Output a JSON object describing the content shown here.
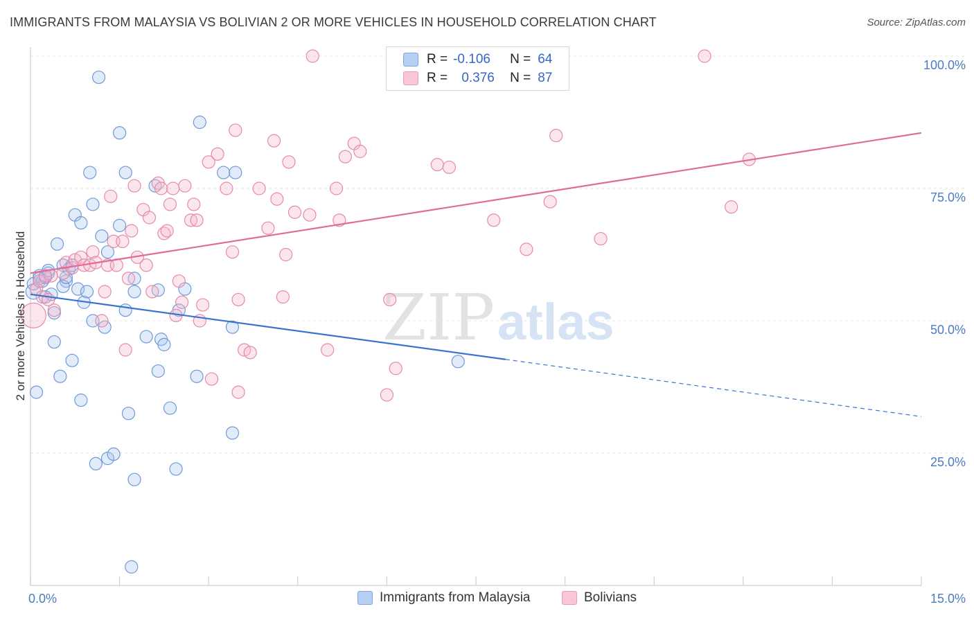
{
  "title": "IMMIGRANTS FROM MALAYSIA VS BOLIVIAN 2 OR MORE VEHICLES IN HOUSEHOLD CORRELATION CHART",
  "source": "Source: ZipAtlas.com",
  "watermark": {
    "zip": "ZIP",
    "atlas": "atlas"
  },
  "legend": {
    "rows": [
      {
        "r_label": "R =",
        "r_value": "-0.106",
        "n_label": "N =",
        "n_value": "64",
        "color": "#a9c6ee",
        "stroke": "#6f9ad8"
      },
      {
        "r_label": "R =",
        "r_value": "0.376",
        "n_label": "N =",
        "n_value": "87",
        "color": "#f6b8cc",
        "stroke": "#e58aa8"
      }
    ]
  },
  "bottom_legend": [
    "Immigrants from Malaysia",
    "Bolivians"
  ],
  "chart_data": {
    "type": "scatter",
    "title": "IMMIGRANTS FROM MALAYSIA VS BOLIVIAN 2 OR MORE VEHICLES IN HOUSEHOLD CORRELATION CHART",
    "xlabel": "",
    "ylabel": "2 or more Vehicles in Household",
    "xlim": [
      0,
      15
    ],
    "ylim": [
      0,
      102
    ],
    "x_tick_labels": [
      {
        "value": 0,
        "label": "0.0%"
      },
      {
        "value": 15,
        "label": "15.0%"
      }
    ],
    "y_tick_labels": [
      {
        "value": 25,
        "label": "25.0%"
      },
      {
        "value": 50,
        "label": "50.0%"
      },
      {
        "value": 75,
        "label": "75.0%"
      },
      {
        "value": 100,
        "label": "100.0%"
      }
    ],
    "grid": true,
    "legend_position": "top-center",
    "series": [
      {
        "name": "Immigrants from Malaysia",
        "color": "#6f9ad8",
        "fill": "#a9c6ee",
        "trend": {
          "x0": 0,
          "y0": 55.0,
          "x1": 8.0,
          "y1": 42.7,
          "dash_to_x": 15,
          "dash_to_y": 31.9,
          "color": "#3a72d0"
        },
        "points": [
          [
            0.05,
            55.5
          ],
          [
            0.05,
            57.0
          ],
          [
            0.15,
            58.5
          ],
          [
            0.2,
            57.5
          ],
          [
            0.25,
            58.2
          ],
          [
            0.3,
            59.0
          ],
          [
            0.35,
            55.0
          ],
          [
            0.4,
            51.5
          ],
          [
            0.4,
            46.0
          ],
          [
            0.45,
            64.5
          ],
          [
            0.5,
            39.5
          ],
          [
            0.55,
            60.5
          ],
          [
            0.6,
            57.5
          ],
          [
            0.65,
            59.8
          ],
          [
            0.7,
            42.5
          ],
          [
            0.7,
            60.5
          ],
          [
            0.75,
            70.0
          ],
          [
            0.8,
            56.0
          ],
          [
            0.85,
            35.0
          ],
          [
            0.85,
            68.5
          ],
          [
            0.9,
            53.5
          ],
          [
            0.95,
            55.5
          ],
          [
            1.0,
            78.0
          ],
          [
            1.05,
            72.0
          ],
          [
            1.05,
            50.0
          ],
          [
            1.1,
            23.0
          ],
          [
            1.15,
            96.0
          ],
          [
            1.2,
            66.0
          ],
          [
            1.25,
            48.8
          ],
          [
            1.3,
            63.0
          ],
          [
            1.3,
            24.0
          ],
          [
            1.4,
            24.8
          ],
          [
            1.5,
            85.5
          ],
          [
            1.5,
            68.0
          ],
          [
            1.6,
            78.0
          ],
          [
            1.6,
            52.0
          ],
          [
            1.65,
            32.5
          ],
          [
            1.7,
            3.5
          ],
          [
            1.75,
            58.0
          ],
          [
            1.75,
            55.5
          ],
          [
            1.75,
            20.0
          ],
          [
            1.95,
            47.0
          ],
          [
            2.1,
            75.5
          ],
          [
            2.15,
            40.5
          ],
          [
            2.15,
            55.8
          ],
          [
            2.2,
            46.5
          ],
          [
            2.25,
            45.5
          ],
          [
            2.35,
            33.5
          ],
          [
            2.45,
            22.0
          ],
          [
            2.5,
            52.0
          ],
          [
            2.6,
            56.0
          ],
          [
            2.8,
            39.5
          ],
          [
            2.85,
            87.5
          ],
          [
            3.25,
            78.0
          ],
          [
            3.4,
            28.8
          ],
          [
            3.4,
            48.8
          ],
          [
            3.45,
            78.0
          ],
          [
            7.2,
            42.3
          ],
          [
            0.1,
            36.5
          ],
          [
            0.15,
            58.0
          ],
          [
            0.25,
            54.5
          ],
          [
            0.3,
            59.5
          ],
          [
            0.55,
            56.5
          ],
          [
            0.6,
            58.2
          ]
        ]
      },
      {
        "name": "Bolivians",
        "color": "#e58aa8",
        "fill": "#f6b8cc",
        "trend": {
          "x0": 0,
          "y0": 59.0,
          "x1": 15,
          "y1": 85.5,
          "color": "#e06b95"
        },
        "points": [
          [
            0.05,
            51.0
          ],
          [
            0.1,
            56.0
          ],
          [
            0.15,
            57.5
          ],
          [
            0.2,
            54.5
          ],
          [
            0.3,
            54.0
          ],
          [
            0.35,
            58.5
          ],
          [
            0.4,
            52.0
          ],
          [
            0.55,
            59.0
          ],
          [
            0.6,
            61.0
          ],
          [
            0.7,
            60.0
          ],
          [
            0.75,
            61.5
          ],
          [
            0.85,
            62.0
          ],
          [
            0.9,
            60.5
          ],
          [
            1.0,
            60.5
          ],
          [
            1.05,
            63.0
          ],
          [
            1.1,
            61.0
          ],
          [
            1.2,
            50.0
          ],
          [
            1.25,
            55.5
          ],
          [
            1.3,
            60.5
          ],
          [
            1.35,
            73.5
          ],
          [
            1.4,
            65.0
          ],
          [
            1.45,
            60.5
          ],
          [
            1.55,
            65.0
          ],
          [
            1.6,
            44.5
          ],
          [
            1.65,
            58.0
          ],
          [
            1.7,
            67.0
          ],
          [
            1.75,
            75.5
          ],
          [
            1.8,
            62.0
          ],
          [
            1.9,
            71.0
          ],
          [
            1.95,
            60.5
          ],
          [
            2.0,
            69.5
          ],
          [
            2.05,
            55.5
          ],
          [
            2.15,
            76.0
          ],
          [
            2.2,
            75.0
          ],
          [
            2.25,
            66.5
          ],
          [
            2.3,
            67.0
          ],
          [
            2.35,
            72.0
          ],
          [
            2.4,
            75.0
          ],
          [
            2.45,
            51.0
          ],
          [
            2.5,
            57.5
          ],
          [
            2.55,
            53.5
          ],
          [
            2.6,
            75.5
          ],
          [
            2.7,
            69.0
          ],
          [
            2.75,
            72.0
          ],
          [
            2.8,
            69.0
          ],
          [
            2.85,
            50.0
          ],
          [
            2.9,
            53.0
          ],
          [
            3.0,
            80.0
          ],
          [
            3.05,
            39.0
          ],
          [
            3.15,
            81.5
          ],
          [
            3.3,
            75.0
          ],
          [
            3.4,
            63.0
          ],
          [
            3.45,
            86.0
          ],
          [
            3.5,
            36.5
          ],
          [
            3.5,
            54.0
          ],
          [
            3.6,
            44.5
          ],
          [
            3.7,
            44.0
          ],
          [
            3.85,
            75.0
          ],
          [
            4.0,
            67.5
          ],
          [
            4.1,
            84.0
          ],
          [
            4.15,
            73.0
          ],
          [
            4.25,
            54.5
          ],
          [
            4.3,
            62.5
          ],
          [
            4.35,
            80.0
          ],
          [
            4.45,
            70.5
          ],
          [
            4.7,
            70.0
          ],
          [
            4.75,
            100.0
          ],
          [
            5.0,
            44.5
          ],
          [
            5.15,
            75.0
          ],
          [
            5.2,
            69.0
          ],
          [
            5.3,
            81.0
          ],
          [
            5.45,
            83.5
          ],
          [
            5.55,
            82.0
          ],
          [
            6.0,
            36.0
          ],
          [
            6.05,
            54.0
          ],
          [
            6.15,
            41.0
          ],
          [
            6.85,
            79.5
          ],
          [
            7.05,
            79.0
          ],
          [
            7.8,
            69.0
          ],
          [
            8.35,
            63.5
          ],
          [
            8.75,
            72.5
          ],
          [
            8.85,
            85.0
          ],
          [
            9.6,
            65.5
          ],
          [
            11.35,
            100.0
          ],
          [
            11.8,
            71.5
          ],
          [
            12.1,
            80.5
          ],
          [
            0.25,
            58.5
          ]
        ]
      }
    ]
  }
}
